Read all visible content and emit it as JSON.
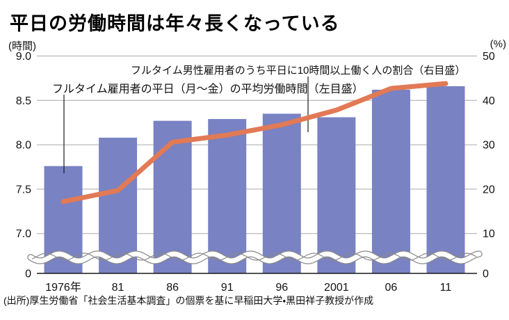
{
  "title": "平日の労働時間は年々長くなっている",
  "source": "(出所)厚生労働省「社会生活基本調査」の個票を基に早稲田大学・黒田祥子教授が作成",
  "colors": {
    "bar": "#7982c3",
    "line": "#e17a55",
    "grid": "#aaaaaa",
    "axis": "#1a1a1a",
    "text": "#111111",
    "break_wave_outline": "#8a8a8a",
    "break_wave_fill": "#ffffff"
  },
  "chart_data": {
    "type": "bar",
    "title": "平日の労働時間は年々長くなっている",
    "categories": [
      "1976年",
      "81",
      "86",
      "91",
      "96",
      "2001",
      "06",
      "11"
    ],
    "series": [
      {
        "name": "フルタイム雇用者の平日（月～金）の平均労働時間（左目盛）",
        "type": "bar",
        "axis": "left",
        "unit": "時間",
        "values": [
          7.76,
          8.08,
          8.27,
          8.29,
          8.35,
          8.31,
          8.62,
          8.66
        ]
      },
      {
        "name": "フルタイム男性雇用者のうち平日に10時間以上働く人の割合（右目盛）",
        "type": "line",
        "axis": "right",
        "unit": "%",
        "values": [
          17.2,
          19.7,
          30.6,
          32.2,
          34.5,
          37.8,
          42.7,
          43.8
        ]
      }
    ],
    "left_axis": {
      "unit": "(時間)",
      "ticks": [
        9.0,
        8.5,
        8.0,
        7.5,
        7.0
      ],
      "break_label": "0",
      "axis_break": true,
      "range_shown": [
        7.0,
        9.0
      ]
    },
    "right_axis": {
      "unit": "(%)",
      "ticks": [
        50,
        40,
        30,
        20,
        10
      ],
      "break_label": "0",
      "axis_break": true,
      "range_shown": [
        10,
        50
      ]
    },
    "grid": true,
    "legend": "inline-annotations"
  }
}
